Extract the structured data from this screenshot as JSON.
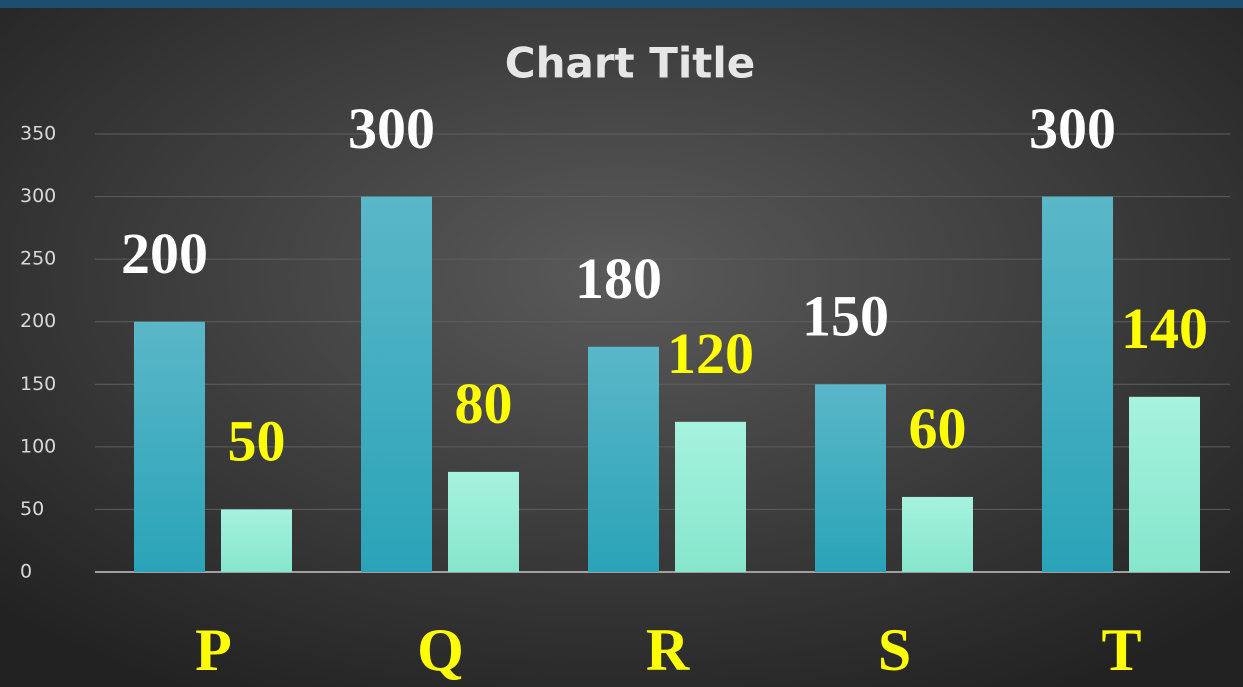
{
  "chart_data": {
    "type": "bar",
    "title": "Chart Title",
    "categories": [
      "P",
      "Q",
      "R",
      "S",
      "T"
    ],
    "series": [
      {
        "color": "#3cb0c2",
        "values": [
          200,
          300,
          180,
          150,
          300
        ]
      },
      {
        "color": "#9ef0da",
        "values": [
          50,
          80,
          120,
          60,
          140
        ]
      }
    ],
    "ylim": [
      0,
      350
    ],
    "yticks": [
      0,
      50,
      100,
      150,
      200,
      250,
      300,
      350
    ],
    "grid": true
  }
}
